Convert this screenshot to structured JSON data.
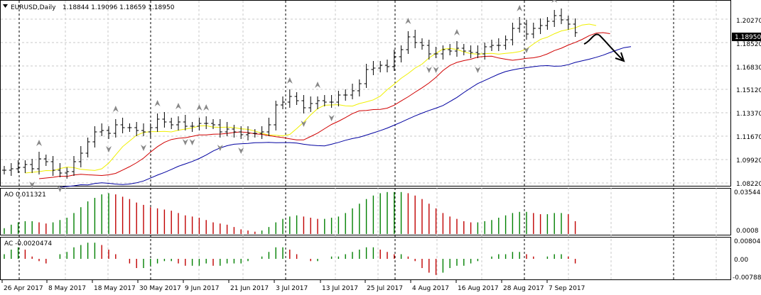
{
  "header": {
    "symbol_label": "EURUSD,Daily",
    "ohlc": "1.18844 1.19096 1.18659 1.18950"
  },
  "main": {
    "price_ticks": [
      "1.20270",
      "1.18520",
      "1.16830",
      "1.15120",
      "1.13370",
      "1.11670",
      "1.09920",
      "1.08220"
    ],
    "current_price": "1.18950"
  },
  "ao": {
    "label": "AO 0.011321",
    "ticks": [
      "0.035447",
      "0.0008"
    ]
  },
  "ac": {
    "label": "AC -0.0020474",
    "ticks": [
      "0.0080413",
      "0.00",
      "-0.0078873"
    ]
  },
  "time_axis": [
    "26 Apr 2017",
    "8 May 2017",
    "18 May 2017",
    "30 May 2017",
    "9 Jun 2017",
    "21 Jun 2017",
    "3 Jul 2017",
    "13 Jul 2017",
    "25 Jul 2017",
    "4 Aug 2017",
    "16 Aug 2017",
    "28 Aug 2017",
    "7 Sep 2017"
  ],
  "colors": {
    "ma_fast": "#f0f000",
    "ma_mid": "#d00000",
    "ma_slow": "#0000a0",
    "up": "#008000",
    "down": "#c00000",
    "bars": "#000000",
    "price_marker": "#000000"
  },
  "chart_data": {
    "type": "ohlc",
    "symbol": "EURUSD",
    "timeframe": "Daily",
    "y_range": [
      1.0805,
      1.2115
    ],
    "approx_closes": [
      1.092,
      1.093,
      1.094,
      1.096,
      1.093,
      1.1,
      1.098,
      1.092,
      1.09,
      1.091,
      1.098,
      1.104,
      1.112,
      1.119,
      1.12,
      1.118,
      1.124,
      1.122,
      1.122,
      1.12,
      1.119,
      1.122,
      1.128,
      1.126,
      1.124,
      1.126,
      1.123,
      1.123,
      1.125,
      1.125,
      1.124,
      1.119,
      1.121,
      1.119,
      1.117,
      1.118,
      1.118,
      1.119,
      1.124,
      1.138,
      1.14,
      1.144,
      1.141,
      1.136,
      1.139,
      1.141,
      1.14,
      1.14,
      1.145,
      1.145,
      1.148,
      1.153,
      1.163,
      1.164,
      1.166,
      1.165,
      1.172,
      1.177,
      1.186,
      1.182,
      1.18,
      1.174,
      1.174,
      1.177,
      1.176,
      1.178,
      1.176,
      1.175,
      1.174,
      1.179,
      1.18,
      1.18,
      1.184,
      1.192,
      1.195,
      1.188,
      1.192,
      1.194,
      1.197,
      1.201,
      1.198,
      1.195,
      1.189
    ],
    "ao_values": [
      0.005,
      0.008,
      0.01,
      0.011,
      0.011,
      0.01,
      0.009,
      0.01,
      0.012,
      0.014,
      0.018,
      0.023,
      0.028,
      0.031,
      0.034,
      0.035,
      0.034,
      0.032,
      0.03,
      0.027,
      0.025,
      0.023,
      0.022,
      0.021,
      0.02,
      0.018,
      0.016,
      0.015,
      0.014,
      0.012,
      0.01,
      0.009,
      0.008,
      0.006,
      0.004,
      0.003,
      0.002,
      0.003,
      0.006,
      0.01,
      0.013,
      0.015,
      0.016,
      0.015,
      0.014,
      0.013,
      0.013,
      0.014,
      0.015,
      0.018,
      0.022,
      0.026,
      0.03,
      0.033,
      0.035,
      0.036,
      0.036,
      0.036,
      0.035,
      0.033,
      0.03,
      0.026,
      0.022,
      0.018,
      0.015,
      0.013,
      0.011,
      0.01,
      0.01,
      0.011,
      0.012,
      0.014,
      0.016,
      0.018,
      0.019,
      0.019,
      0.018,
      0.017,
      0.017,
      0.018,
      0.018,
      0.017,
      0.011
    ],
    "ac_values": [
      0.002,
      0.004,
      0.005,
      0.004,
      0.001,
      -0.001,
      -0.002,
      0.0,
      0.002,
      0.003,
      0.005,
      0.006,
      0.007,
      0.007,
      0.006,
      0.004,
      0.002,
      0.0,
      -0.002,
      -0.004,
      -0.004,
      -0.003,
      -0.002,
      -0.001,
      -0.001,
      -0.002,
      -0.003,
      -0.003,
      -0.003,
      -0.002,
      -0.003,
      -0.003,
      -0.002,
      -0.002,
      -0.002,
      -0.001,
      0.0,
      0.001,
      0.003,
      0.005,
      0.005,
      0.004,
      0.002,
      0.0,
      -0.001,
      -0.001,
      0.0,
      0.001,
      0.001,
      0.002,
      0.003,
      0.004,
      0.005,
      0.005,
      0.004,
      0.003,
      0.002,
      0.002,
      0.001,
      -0.001,
      -0.004,
      -0.006,
      -0.007,
      -0.006,
      -0.004,
      -0.003,
      -0.003,
      -0.002,
      -0.001,
      0.0,
      0.001,
      0.002,
      0.002,
      0.003,
      0.003,
      0.002,
      0.001,
      0.0,
      0.001,
      0.002,
      0.002,
      0.001,
      -0.002
    ]
  }
}
